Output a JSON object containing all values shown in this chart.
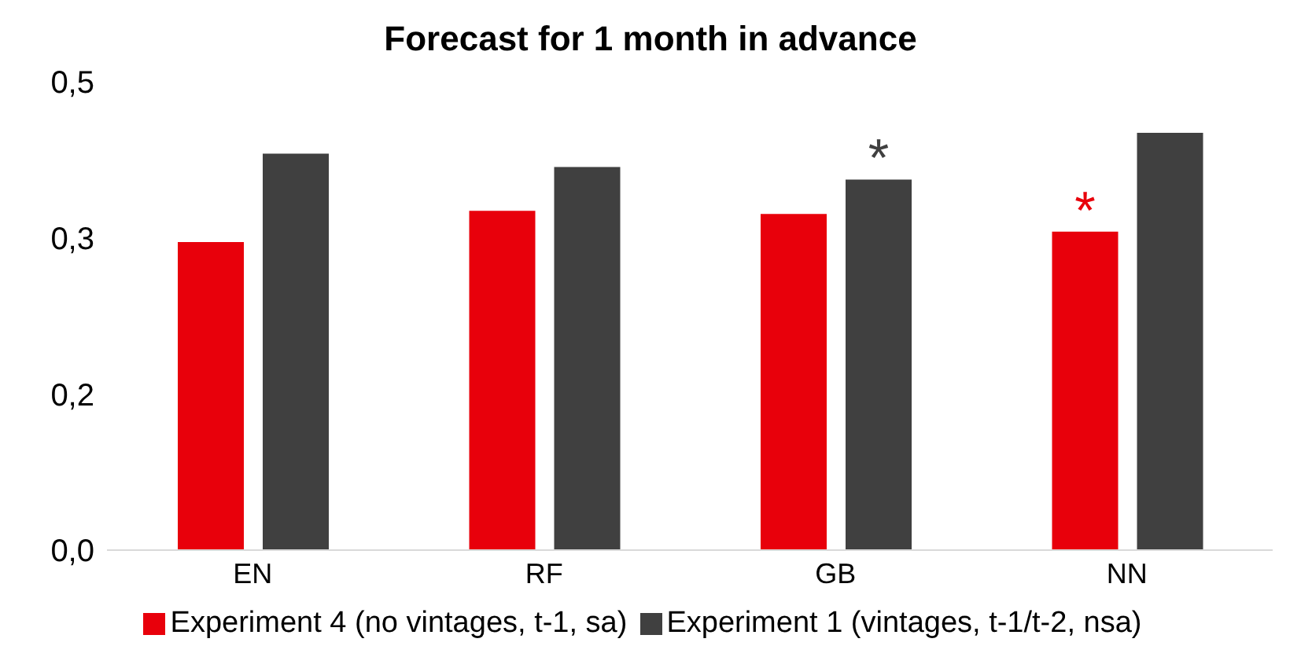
{
  "chart_data": {
    "type": "bar",
    "title": "Forecast for 1 month in advance",
    "categories": [
      "EN",
      "RF",
      "GB",
      "NN"
    ],
    "series": [
      {
        "name": "Experiment 4 (no vintages, t-1, sa)",
        "color": "#e8000b",
        "values": [
          0.296,
          0.326,
          0.323,
          0.306
        ],
        "value_labels": [
          null,
          null,
          null,
          "*"
        ]
      },
      {
        "name": "Experiment 1 (vintages, t-1/t-2, nsa)",
        "color": "#404040",
        "values": [
          0.381,
          0.368,
          0.356,
          0.401
        ],
        "value_labels": [
          null,
          null,
          "*",
          null
        ]
      }
    ],
    "ylim": [
      0,
      0.45
    ],
    "yticks": [
      {
        "value": 0,
        "label": "0,0"
      },
      {
        "value": 0.15,
        "label": "0,2"
      },
      {
        "value": 0.3,
        "label": "0,3"
      },
      {
        "value": 0.45,
        "label": "0,5"
      }
    ],
    "grid": false,
    "legend": "bottom"
  }
}
